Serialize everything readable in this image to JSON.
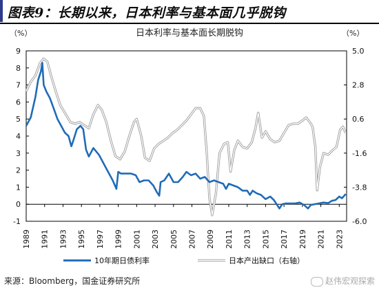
{
  "header": {
    "title": "图表9：长期以来，日本利率与基本面几乎脱钩"
  },
  "source": "来源：Bloomberg，国金证券研究所",
  "watermark": "赵伟宏观探索",
  "chart_data": {
    "type": "line",
    "title": "日本利率与基本面长期脱钩",
    "left_unit": "（%）",
    "right_unit": "（%）",
    "x_ticks": [
      "1989",
      "1991",
      "1993",
      "1995",
      "1997",
      "1999",
      "2001",
      "2003",
      "2005",
      "2007",
      "2009",
      "2011",
      "2013",
      "2015",
      "2017",
      "2019",
      "2021",
      "2023"
    ],
    "xlim": [
      1989,
      2023.8
    ],
    "left_ylim": [
      -1,
      9
    ],
    "left_ticks": [
      "-1",
      "0",
      "1",
      "2",
      "3",
      "4",
      "5",
      "6",
      "7",
      "8",
      "9"
    ],
    "right_ylim": [
      -6.0,
      5.0
    ],
    "right_ticks": [
      "-6.0",
      "-3.8",
      "-1.6",
      "0.6",
      "2.8",
      "5.0"
    ],
    "legend_position": "bottom",
    "series": [
      {
        "name": "10年期日债利率",
        "axis": "left",
        "color": "#1f6bb8",
        "points": [
          [
            1989.0,
            4.6
          ],
          [
            1989.5,
            5.1
          ],
          [
            1990.0,
            6.3
          ],
          [
            1990.3,
            7.3
          ],
          [
            1990.6,
            7.8
          ],
          [
            1990.75,
            8.3
          ],
          [
            1990.9,
            7.0
          ],
          [
            1991.2,
            6.6
          ],
          [
            1991.6,
            6.2
          ],
          [
            1992.0,
            5.6
          ],
          [
            1992.4,
            5.0
          ],
          [
            1992.8,
            4.6
          ],
          [
            1993.2,
            4.2
          ],
          [
            1993.6,
            4.0
          ],
          [
            1993.9,
            3.4
          ],
          [
            1994.1,
            3.7
          ],
          [
            1994.5,
            4.4
          ],
          [
            1994.9,
            4.6
          ],
          [
            1995.2,
            4.4
          ],
          [
            1995.5,
            3.2
          ],
          [
            1995.8,
            2.8
          ],
          [
            1996.3,
            3.3
          ],
          [
            1996.9,
            2.9
          ],
          [
            1997.5,
            2.3
          ],
          [
            1997.9,
            1.9
          ],
          [
            1998.4,
            1.4
          ],
          [
            1998.8,
            0.9
          ],
          [
            1999.0,
            1.9
          ],
          [
            1999.3,
            1.8
          ],
          [
            1999.8,
            1.8
          ],
          [
            2000.4,
            1.8
          ],
          [
            2000.9,
            1.7
          ],
          [
            2001.3,
            1.3
          ],
          [
            2001.8,
            1.4
          ],
          [
            2002.3,
            1.4
          ],
          [
            2002.8,
            1.1
          ],
          [
            2003.2,
            0.7
          ],
          [
            2003.45,
            0.5
          ],
          [
            2003.6,
            1.3
          ],
          [
            2004.0,
            1.4
          ],
          [
            2004.5,
            1.8
          ],
          [
            2005.0,
            1.3
          ],
          [
            2005.5,
            1.3
          ],
          [
            2006.0,
            1.6
          ],
          [
            2006.4,
            1.9
          ],
          [
            2006.9,
            1.7
          ],
          [
            2007.4,
            1.8
          ],
          [
            2007.9,
            1.5
          ],
          [
            2008.4,
            1.6
          ],
          [
            2008.9,
            1.3
          ],
          [
            2009.4,
            1.4
          ],
          [
            2009.9,
            1.3
          ],
          [
            2010.4,
            1.2
          ],
          [
            2010.7,
            0.9
          ],
          [
            2011.0,
            1.2
          ],
          [
            2011.5,
            1.1
          ],
          [
            2012.0,
            1.0
          ],
          [
            2012.5,
            0.8
          ],
          [
            2013.0,
            0.8
          ],
          [
            2013.3,
            0.55
          ],
          [
            2013.6,
            0.8
          ],
          [
            2014.0,
            0.65
          ],
          [
            2014.5,
            0.55
          ],
          [
            2015.0,
            0.3
          ],
          [
            2015.5,
            0.45
          ],
          [
            2015.9,
            0.25
          ],
          [
            2016.2,
            0.0
          ],
          [
            2016.5,
            -0.25
          ],
          [
            2016.8,
            0.0
          ],
          [
            2017.2,
            0.05
          ],
          [
            2017.7,
            0.05
          ],
          [
            2018.2,
            0.05
          ],
          [
            2018.7,
            0.1
          ],
          [
            2019.2,
            -0.05
          ],
          [
            2019.6,
            -0.25
          ],
          [
            2019.9,
            -0.05
          ],
          [
            2020.3,
            0.0
          ],
          [
            2020.8,
            0.05
          ],
          [
            2021.3,
            0.1
          ],
          [
            2021.8,
            0.07
          ],
          [
            2022.2,
            0.2
          ],
          [
            2022.6,
            0.25
          ],
          [
            2023.0,
            0.45
          ],
          [
            2023.3,
            0.35
          ],
          [
            2023.7,
            0.6
          ]
        ]
      },
      {
        "name": "日本产出缺口（右轴）",
        "axis": "right",
        "color": "#b0b0b0",
        "points": [
          [
            1989.0,
            2.4
          ],
          [
            1989.5,
            3.0
          ],
          [
            1990.0,
            3.4
          ],
          [
            1990.5,
            4.2
          ],
          [
            1990.9,
            4.5
          ],
          [
            1991.3,
            4.3
          ],
          [
            1991.7,
            3.4
          ],
          [
            1992.2,
            2.4
          ],
          [
            1992.7,
            1.5
          ],
          [
            1993.2,
            1.0
          ],
          [
            1993.8,
            0.4
          ],
          [
            1994.3,
            0.3
          ],
          [
            1994.8,
            0.4
          ],
          [
            1995.3,
            0.2
          ],
          [
            1995.8,
            0.0
          ],
          [
            1996.3,
            0.9
          ],
          [
            1996.8,
            1.5
          ],
          [
            1997.2,
            1.2
          ],
          [
            1997.7,
            0.4
          ],
          [
            1998.2,
            -0.8
          ],
          [
            1998.7,
            -1.8
          ],
          [
            1999.2,
            -2.0
          ],
          [
            1999.7,
            -1.5
          ],
          [
            2000.2,
            -0.5
          ],
          [
            2000.7,
            0.4
          ],
          [
            2001.0,
            0.6
          ],
          [
            2001.5,
            -0.5
          ],
          [
            2001.9,
            -1.9
          ],
          [
            2002.4,
            -2.1
          ],
          [
            2002.9,
            -1.3
          ],
          [
            2003.4,
            -1.0
          ],
          [
            2003.9,
            -0.8
          ],
          [
            2004.4,
            -0.6
          ],
          [
            2004.9,
            -0.3
          ],
          [
            2005.4,
            -0.1
          ],
          [
            2005.9,
            0.2
          ],
          [
            2006.4,
            0.5
          ],
          [
            2006.9,
            0.9
          ],
          [
            2007.4,
            1.3
          ],
          [
            2007.9,
            1.3
          ],
          [
            2008.3,
            0.8
          ],
          [
            2008.6,
            -1.5
          ],
          [
            2008.9,
            -4.5
          ],
          [
            2009.2,
            -5.6
          ],
          [
            2009.6,
            -4.2
          ],
          [
            2010.0,
            -1.6
          ],
          [
            2010.5,
            -1.0
          ],
          [
            2010.9,
            -0.9
          ],
          [
            2011.2,
            -2.8
          ],
          [
            2011.6,
            -1.4
          ],
          [
            2012.0,
            -0.8
          ],
          [
            2012.5,
            -1.2
          ],
          [
            2013.0,
            -1.3
          ],
          [
            2013.5,
            -0.9
          ],
          [
            2013.9,
            0.0
          ],
          [
            2014.2,
            1.0
          ],
          [
            2014.6,
            -0.6
          ],
          [
            2015.0,
            -0.2
          ],
          [
            2015.5,
            -0.7
          ],
          [
            2016.0,
            -0.9
          ],
          [
            2016.5,
            -0.8
          ],
          [
            2017.0,
            -0.3
          ],
          [
            2017.5,
            0.2
          ],
          [
            2018.0,
            0.3
          ],
          [
            2018.5,
            0.3
          ],
          [
            2019.0,
            0.5
          ],
          [
            2019.4,
            0.7
          ],
          [
            2019.8,
            0.4
          ],
          [
            2020.1,
            0.1
          ],
          [
            2020.4,
            -1.2
          ],
          [
            2020.6,
            -4.0
          ],
          [
            2020.9,
            -2.5
          ],
          [
            2021.3,
            -1.6
          ],
          [
            2021.8,
            -1.7
          ],
          [
            2022.3,
            -1.4
          ],
          [
            2022.7,
            -1.2
          ],
          [
            2023.1,
            -0.1
          ],
          [
            2023.4,
            0.1
          ],
          [
            2023.7,
            -0.3
          ]
        ]
      }
    ]
  }
}
